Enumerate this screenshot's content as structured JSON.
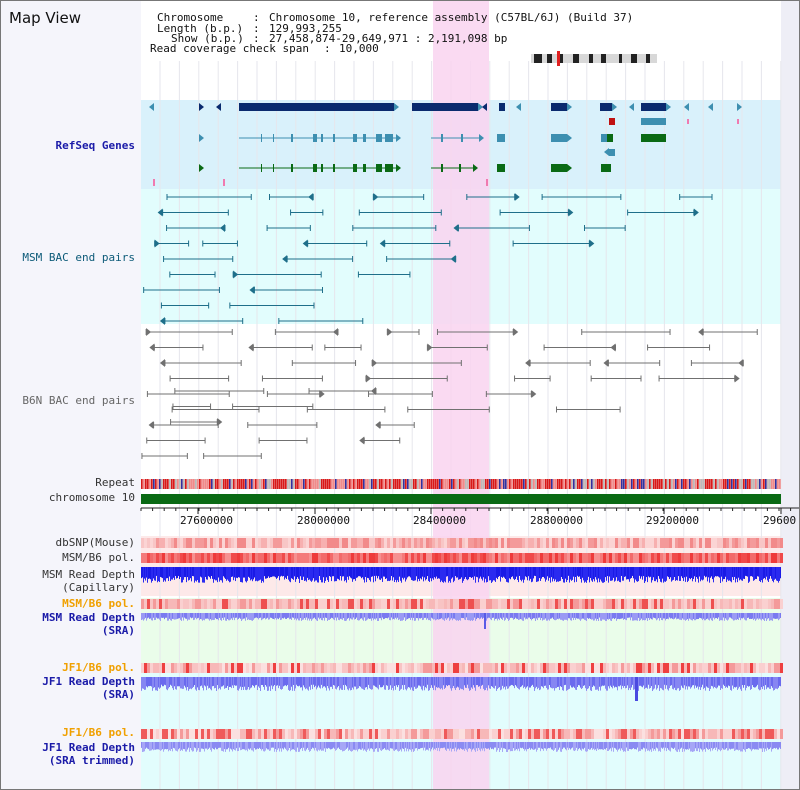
{
  "app": {
    "title": "Map View"
  },
  "header": {
    "chromosome_key": "Chromosome",
    "chromosome_val": "Chromosome 10, reference assembly (C57BL/6J) (Build 37)",
    "length_key": "Length (b.p.)",
    "length_val": "129,993,255",
    "show_key": "Show (b.p.)",
    "show_val": "27,458,874-29,649,971 : 2,191,098 bp",
    "span_key": "Read coverage check span",
    "span_val": "10,000"
  },
  "tracks": {
    "refseq": "RefSeq Genes",
    "msm_bac": "MSM BAC end pairs",
    "b6n_bac": "B6N BAC end pairs",
    "repeat": "Repeat",
    "chromosome": "chromosome 10",
    "dbsnp": "dbSNP(Mouse)",
    "msm_b6_pol": "MSM/B6 pol.",
    "msm_read_depth_cap_1": "MSM Read Depth",
    "msm_read_depth_cap_2": "(Capillary)",
    "msm_b6_pol_sra": "MSM/B6 pol.",
    "msm_read_depth_sra_1": "MSM Read Depth",
    "msm_read_depth_sra_2": "(SRA)",
    "jf1_b6_pol": "JF1/B6 pol.",
    "jf1_read_depth_sra_1": "JF1 Read Depth",
    "jf1_read_depth_sra_2": "(SRA)",
    "jf1_b6_pol_trim": "JF1/B6 pol.",
    "jf1_read_depth_trim_1": "JF1 Read Depth",
    "jf1_read_depth_trim_2": "(SRA trimmed)"
  },
  "axis": {
    "ticks": [
      "27600000",
      "28000000",
      "28400000",
      "28800000",
      "29200000",
      "29600"
    ]
  },
  "colors": {
    "refseq_bg": "#d9f1fb",
    "msm_bg": "#e2fdfd",
    "highlight": "#f9d4f0",
    "gene_navy": "#0a2a6e",
    "gene_teal": "#3d8fb0",
    "gene_green": "#0a6a14",
    "msm_line": "#1f6f8a",
    "b6n_line": "#707070",
    "chrom_bar": "#0a6a14",
    "depth_blue": "#1a1ae6",
    "depth_light": "#7a7af0",
    "pol_red": "#ee3a3a"
  }
}
